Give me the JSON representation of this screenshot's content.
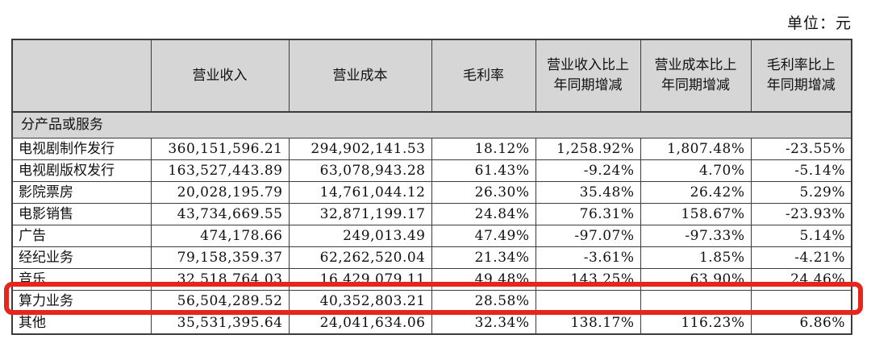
{
  "page": {
    "unit_label": "单位：元"
  },
  "colors": {
    "highlight_red": "#e8251d",
    "header_background": "#d6d6d6",
    "table_border": "#3c3c3c"
  },
  "table": {
    "columns": [
      {
        "id": "category",
        "label": ""
      },
      {
        "id": "revenue",
        "label": "营业收入"
      },
      {
        "id": "cost",
        "label": "营业成本"
      },
      {
        "id": "gross_margin",
        "label": "毛利率"
      },
      {
        "id": "revenue_yoy_change",
        "label": "营业收入比上年同期增减"
      },
      {
        "id": "cost_yoy_change",
        "label": "营业成本比上年同期增减"
      },
      {
        "id": "gross_margin_yoy_change",
        "label": "毛利率比上年同期增减"
      }
    ],
    "rows": [
      {
        "type": "section",
        "label": "分产品或服务",
        "values": []
      },
      {
        "type": "data",
        "label": "电视剧制作发行",
        "values": [
          "360,151,596.21",
          "294,902,141.53",
          "18.12%",
          "1,258.92%",
          "1,807.48%",
          "-23.55%"
        ]
      },
      {
        "type": "data",
        "label": "电视剧版权发行",
        "values": [
          "163,527,443.89",
          "63,078,943.28",
          "61.43%",
          "-9.24%",
          "4.70%",
          "-5.14%"
        ]
      },
      {
        "type": "data",
        "label": "影院票房",
        "values": [
          "20,028,195.79",
          "14,761,044.12",
          "26.30%",
          "35.48%",
          "26.42%",
          "5.29%"
        ]
      },
      {
        "type": "data",
        "label": "电影销售",
        "values": [
          "43,734,669.55",
          "32,871,199.17",
          "24.84%",
          "76.31%",
          "158.67%",
          "-23.93%"
        ]
      },
      {
        "type": "data",
        "label": "广告",
        "values": [
          "474,178.66",
          "249,013.49",
          "47.49%",
          "-97.07%",
          "-97.33%",
          "5.14%"
        ]
      },
      {
        "type": "data",
        "label": "经纪业务",
        "values": [
          "79,158,359.37",
          "62,262,520.04",
          "21.34%",
          "-3.61%",
          "1.85%",
          "-4.21%"
        ]
      },
      {
        "type": "data",
        "label": "音乐",
        "values": [
          "32,518,764.03",
          "16,429,079.11",
          "49.48%",
          "143.25%",
          "63.90%",
          "24.46%"
        ]
      },
      {
        "type": "data",
        "label": "算力业务",
        "highlighted": true,
        "values": [
          "56,504,289.52",
          "40,352,803.21",
          "28.58%",
          "",
          "",
          ""
        ]
      },
      {
        "type": "data",
        "label": "其他",
        "values": [
          "35,531,395.64",
          "24,041,634.06",
          "32.34%",
          "138.17%",
          "116.23%",
          "6.86%"
        ]
      }
    ],
    "highlighted_row_label": "算力业务"
  }
}
